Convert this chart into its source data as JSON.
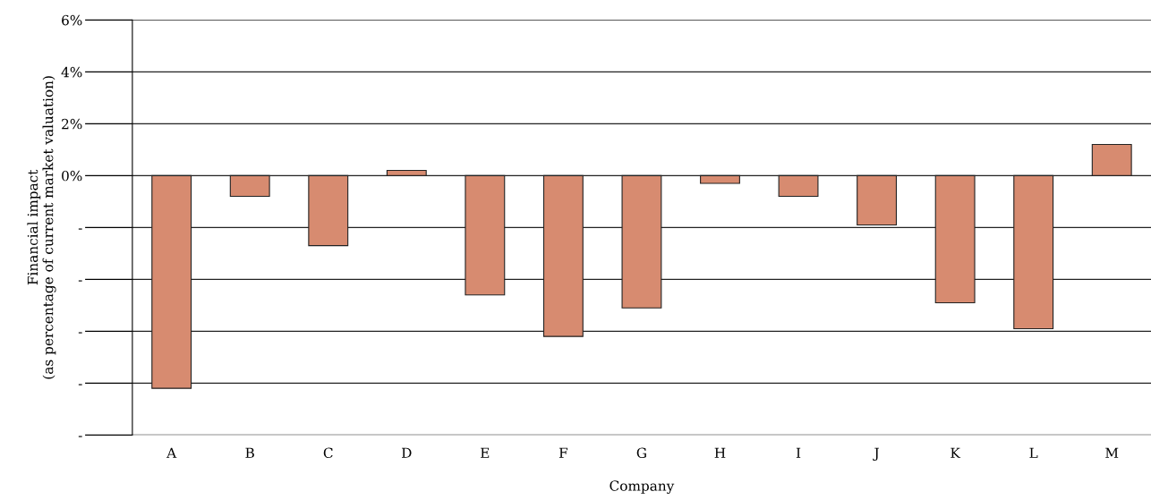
{
  "chart_data": {
    "type": "bar",
    "xlabel": "Company",
    "ylabel": "Financial impact\n(as percentage of current market valuation)",
    "categories": [
      "A",
      "B",
      "C",
      "D",
      "E",
      "F",
      "G",
      "H",
      "I",
      "J",
      "K",
      "L",
      "M"
    ],
    "values": [
      -8.2,
      -0.8,
      -2.7,
      0.2,
      -4.6,
      -6.2,
      -5.1,
      -0.3,
      -0.8,
      -1.9,
      -4.9,
      -5.9,
      1.2
    ],
    "color": "#d78b70",
    "ylim": [
      -10,
      6
    ],
    "yticks": [
      {
        "value": -10,
        "label": "-"
      },
      {
        "value": -8,
        "label": "-"
      },
      {
        "value": -6,
        "label": "-"
      },
      {
        "value": -4,
        "label": "-"
      },
      {
        "value": -2,
        "label": "-"
      },
      {
        "value": 0,
        "label": "0%"
      },
      {
        "value": 2,
        "label": "2%"
      },
      {
        "value": 4,
        "label": "4%"
      },
      {
        "value": 6,
        "label": "6%"
      }
    ],
    "grid": "y"
  }
}
